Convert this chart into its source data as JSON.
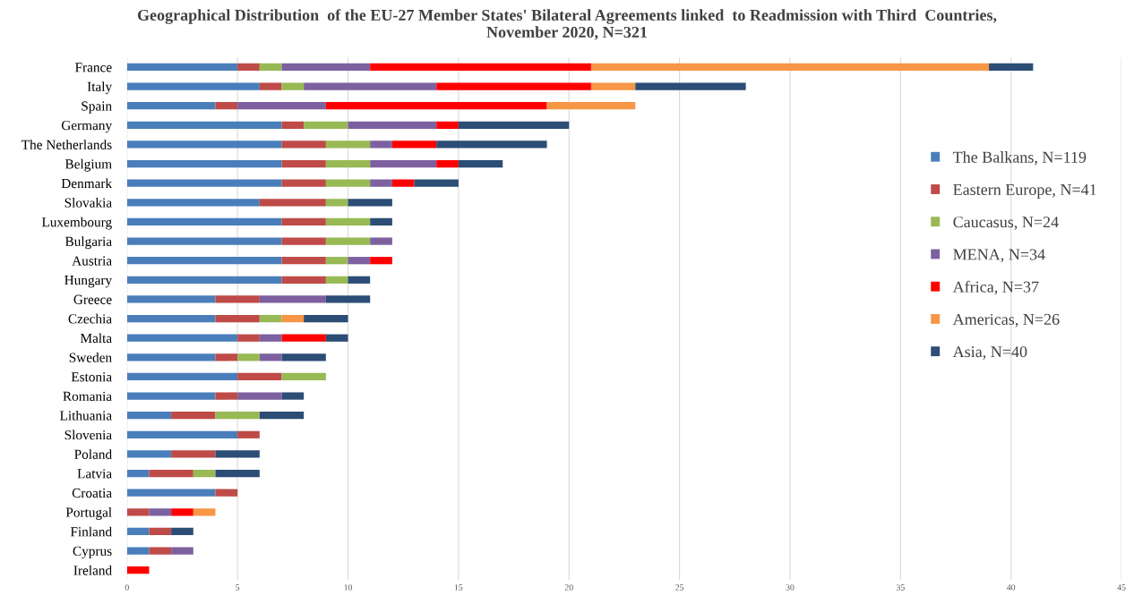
{
  "chart_data": {
    "type": "bar",
    "orientation": "horizontal",
    "stacked": true,
    "title": "Geographical Distribution  of the EU-27 Member States' Bilateral Agreements linked  to Readmission with Third  Countries,\nNovember 2020, N=321",
    "categories": [
      "France",
      "Italy",
      "Spain",
      "Germany",
      "The Netherlands",
      "Belgium",
      "Denmark",
      "Slovakia",
      "Luxembourg",
      "Bulgaria",
      "Austria",
      "Hungary",
      "Greece",
      "Czechia",
      "Malta",
      "Sweden",
      "Estonia",
      "Romania",
      "Lithuania",
      "Slovenia",
      "Poland",
      "Latvia",
      "Croatia",
      "Portugal",
      "Finland",
      "Cyprus",
      "Ireland"
    ],
    "series": [
      {
        "name": "The Balkans, N=119",
        "color": "#4a7ebb",
        "values": [
          5,
          6,
          4,
          7,
          7,
          7,
          7,
          6,
          7,
          7,
          7,
          7,
          4,
          4,
          5,
          4,
          5,
          4,
          2,
          5,
          2,
          1,
          4,
          0,
          1,
          1,
          0
        ]
      },
      {
        "name": "Eastern Europe, N=41",
        "color": "#be4b48",
        "values": [
          1,
          1,
          1,
          1,
          2,
          2,
          2,
          3,
          2,
          2,
          2,
          2,
          2,
          2,
          1,
          1,
          2,
          1,
          2,
          1,
          2,
          2,
          1,
          1,
          1,
          1,
          0
        ]
      },
      {
        "name": "Caucasus, N=24",
        "color": "#98b954",
        "values": [
          1,
          1,
          0,
          2,
          2,
          2,
          2,
          1,
          2,
          2,
          1,
          1,
          0,
          1,
          0,
          1,
          2,
          0,
          2,
          0,
          0,
          1,
          0,
          0,
          0,
          0,
          0
        ]
      },
      {
        "name": "MENA, N=34",
        "color": "#7d60a0",
        "values": [
          4,
          6,
          4,
          4,
          1,
          3,
          1,
          0,
          0,
          1,
          1,
          0,
          3,
          0,
          1,
          1,
          0,
          2,
          0,
          0,
          0,
          0,
          0,
          1,
          0,
          1,
          0
        ]
      },
      {
        "name": "Africa, N=37",
        "color": "#ff0000",
        "values": [
          10,
          7,
          10,
          1,
          2,
          1,
          1,
          0,
          0,
          0,
          1,
          0,
          0,
          0,
          2,
          0,
          0,
          0,
          0,
          0,
          0,
          0,
          0,
          1,
          0,
          0,
          1
        ]
      },
      {
        "name": "Americas, N=26",
        "color": "#f79646",
        "values": [
          18,
          2,
          4,
          0,
          0,
          0,
          0,
          0,
          0,
          0,
          0,
          0,
          0,
          1,
          0,
          0,
          0,
          0,
          0,
          0,
          0,
          0,
          0,
          1,
          0,
          0,
          0
        ]
      },
      {
        "name": "Asia, N=40",
        "color": "#2c4d75",
        "values": [
          2,
          5,
          0,
          5,
          5,
          2,
          2,
          2,
          1,
          0,
          0,
          1,
          2,
          2,
          1,
          2,
          0,
          1,
          2,
          0,
          2,
          2,
          0,
          0,
          1,
          0,
          0
        ]
      }
    ],
    "xlim": [
      0,
      45
    ],
    "xticks": [
      0,
      5,
      10,
      15,
      20,
      25,
      30,
      35,
      40,
      45
    ],
    "grid": "x",
    "legend": "right"
  }
}
